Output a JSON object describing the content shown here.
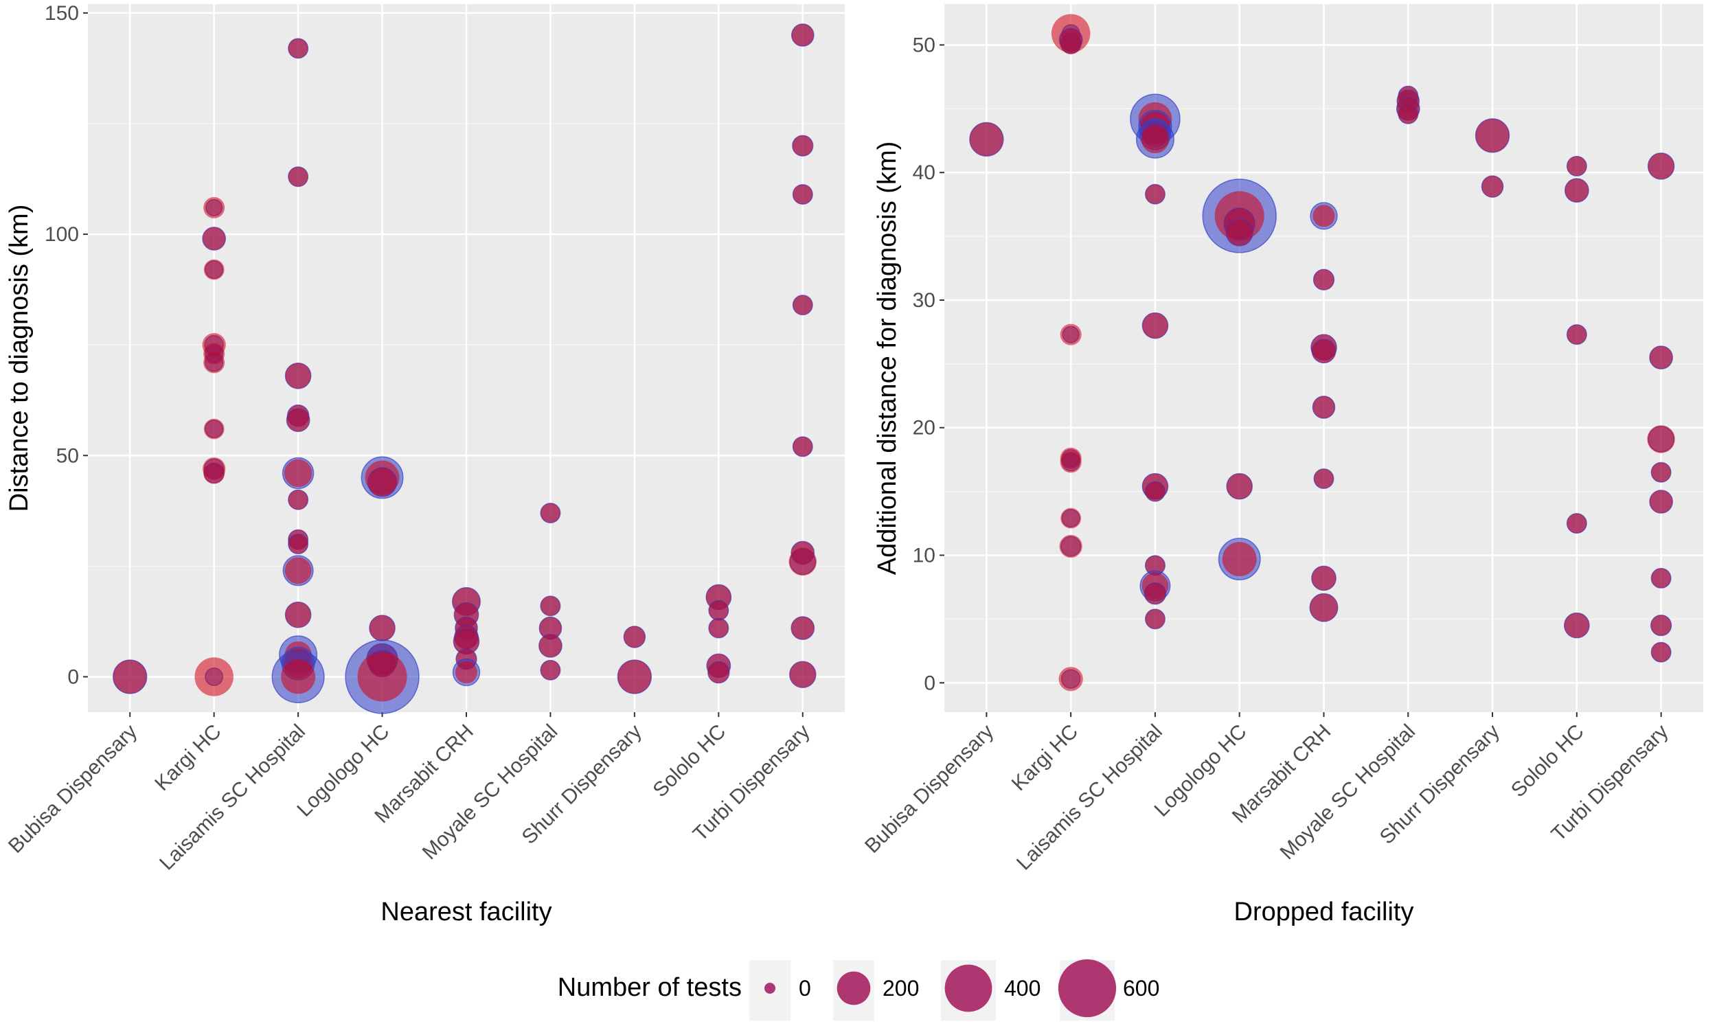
{
  "chart_data": [
    {
      "type": "scatter",
      "xlabel": "Nearest facility",
      "ylabel": "Distance to diagnosis (km)",
      "ylim": [
        -8,
        152
      ],
      "yticks": [
        0,
        50,
        100,
        150
      ],
      "grid": true,
      "categories": [
        "Bubisa Dispensary",
        "Kargi HC",
        "Laisamis SC Hospital",
        "Logologo HC",
        "Marsabit CRH",
        "Moyale SC Hospital",
        "Shurr Dispensary",
        "Sololo HC",
        "Turbi Dispensary"
      ],
      "points": [
        {
          "category": "Bubisa Dispensary",
          "y": 0,
          "tests": 150,
          "blue": 150
        },
        {
          "category": "Kargi HC",
          "y": 106,
          "tests": 40,
          "blue": 15
        },
        {
          "category": "Kargi HC",
          "y": 99,
          "tests": 50,
          "blue": 50
        },
        {
          "category": "Kargi HC",
          "y": 92,
          "tests": 35,
          "blue": 20
        },
        {
          "category": "Kargi HC",
          "y": 75,
          "tests": 55,
          "blue": 25
        },
        {
          "category": "Kargi HC",
          "y": 73,
          "tests": 40,
          "blue": 20
        },
        {
          "category": "Kargi HC",
          "y": 71,
          "tests": 40,
          "blue": 20
        },
        {
          "category": "Kargi HC",
          "y": 56,
          "tests": 35,
          "blue": 20
        },
        {
          "category": "Kargi HC",
          "y": 47,
          "tests": 50,
          "blue": 30
        },
        {
          "category": "Kargi HC",
          "y": 46,
          "tests": 40,
          "blue": 30
        },
        {
          "category": "Kargi HC",
          "y": 0,
          "tests": 220,
          "blue": 20
        },
        {
          "category": "Laisamis SC Hospital",
          "y": 142,
          "tests": 30,
          "blue": 30
        },
        {
          "category": "Laisamis SC Hospital",
          "y": 113,
          "tests": 30,
          "blue": 30
        },
        {
          "category": "Laisamis SC Hospital",
          "y": 68,
          "tests": 70,
          "blue": 70
        },
        {
          "category": "Laisamis SC Hospital",
          "y": 59,
          "tests": 40,
          "blue": 40
        },
        {
          "category": "Laisamis SC Hospital",
          "y": 58,
          "tests": 50,
          "blue": 50
        },
        {
          "category": "Laisamis SC Hospital",
          "y": 46,
          "tests": 90,
          "blue": 120
        },
        {
          "category": "Laisamis SC Hospital",
          "y": 40,
          "tests": 30,
          "blue": 30
        },
        {
          "category": "Laisamis SC Hospital",
          "y": 31,
          "tests": 30,
          "blue": 30
        },
        {
          "category": "Laisamis SC Hospital",
          "y": 30,
          "tests": 30,
          "blue": 30
        },
        {
          "category": "Laisamis SC Hospital",
          "y": 24,
          "tests": 80,
          "blue": 110
        },
        {
          "category": "Laisamis SC Hospital",
          "y": 14,
          "tests": 70,
          "blue": 70
        },
        {
          "category": "Laisamis SC Hospital",
          "y": 5,
          "tests": 80,
          "blue": 200
        },
        {
          "category": "Laisamis SC Hospital",
          "y": 3,
          "tests": 110,
          "blue": 140
        },
        {
          "category": "Laisamis SC Hospital",
          "y": 0,
          "tests": 160,
          "blue": 450
        },
        {
          "category": "Logologo HC",
          "y": 45,
          "tests": 160,
          "blue": 260
        },
        {
          "category": "Logologo HC",
          "y": 44,
          "tests": 100,
          "blue": 100
        },
        {
          "category": "Logologo HC",
          "y": 11,
          "tests": 70,
          "blue": 70
        },
        {
          "category": "Logologo HC",
          "y": 4,
          "tests": 120,
          "blue": 120
        },
        {
          "category": "Logologo HC",
          "y": 3,
          "tests": 80,
          "blue": 80
        },
        {
          "category": "Logologo HC",
          "y": 0,
          "tests": 400,
          "blue": 1000
        },
        {
          "category": "Marsabit CRH",
          "y": 17,
          "tests": 90,
          "blue": 90
        },
        {
          "category": "Marsabit CRH",
          "y": 14,
          "tests": 60,
          "blue": 60
        },
        {
          "category": "Marsabit CRH",
          "y": 11,
          "tests": 45,
          "blue": 45
        },
        {
          "category": "Marsabit CRH",
          "y": 9,
          "tests": 55,
          "blue": 55
        },
        {
          "category": "Marsabit CRH",
          "y": 8,
          "tests": 70,
          "blue": 70
        },
        {
          "category": "Marsabit CRH",
          "y": 4,
          "tests": 35,
          "blue": 35
        },
        {
          "category": "Marsabit CRH",
          "y": 1,
          "tests": 45,
          "blue": 80
        },
        {
          "category": "Moyale SC Hospital",
          "y": 37,
          "tests": 30,
          "blue": 30
        },
        {
          "category": "Moyale SC Hospital",
          "y": 16,
          "tests": 30,
          "blue": 30
        },
        {
          "category": "Moyale SC Hospital",
          "y": 11,
          "tests": 45,
          "blue": 45
        },
        {
          "category": "Moyale SC Hospital",
          "y": 7,
          "tests": 50,
          "blue": 50
        },
        {
          "category": "Moyale SC Hospital",
          "y": 1.5,
          "tests": 30,
          "blue": 30
        },
        {
          "category": "Shurr Dispensary",
          "y": 9,
          "tests": 40,
          "blue": 40
        },
        {
          "category": "Shurr Dispensary",
          "y": 0,
          "tests": 150,
          "blue": 150
        },
        {
          "category": "Sololo HC",
          "y": 18,
          "tests": 65,
          "blue": 65
        },
        {
          "category": "Sololo HC",
          "y": 15,
          "tests": 30,
          "blue": 30
        },
        {
          "category": "Sololo HC",
          "y": 11,
          "tests": 30,
          "blue": 30
        },
        {
          "category": "Sololo HC",
          "y": 2.5,
          "tests": 55,
          "blue": 55
        },
        {
          "category": "Sololo HC",
          "y": 1,
          "tests": 40,
          "blue": 40
        },
        {
          "category": "Turbi Dispensary",
          "y": 145,
          "tests": 45,
          "blue": 45
        },
        {
          "category": "Turbi Dispensary",
          "y": 120,
          "tests": 35,
          "blue": 35
        },
        {
          "category": "Turbi Dispensary",
          "y": 109,
          "tests": 30,
          "blue": 30
        },
        {
          "category": "Turbi Dispensary",
          "y": 84,
          "tests": 30,
          "blue": 30
        },
        {
          "category": "Turbi Dispensary",
          "y": 52,
          "tests": 30,
          "blue": 30
        },
        {
          "category": "Turbi Dispensary",
          "y": 28,
          "tests": 50,
          "blue": 50
        },
        {
          "category": "Turbi Dispensary",
          "y": 26,
          "tests": 90,
          "blue": 70
        },
        {
          "category": "Turbi Dispensary",
          "y": 11,
          "tests": 50,
          "blue": 50
        },
        {
          "category": "Turbi Dispensary",
          "y": 0.5,
          "tests": 75,
          "blue": 75
        }
      ]
    },
    {
      "type": "scatter",
      "xlabel": "Dropped facility",
      "ylabel": "Additional distance for diagnosis (km)",
      "ylim": [
        -2.3,
        53.2
      ],
      "yticks": [
        0,
        10,
        20,
        30,
        40,
        50
      ],
      "grid": true,
      "categories": [
        "Bubisa Dispensary",
        "Kargi HC",
        "Laisamis SC Hospital",
        "Logologo HC",
        "Marsabit CRH",
        "Moyale SC Hospital",
        "Shurr Dispensary",
        "Sololo HC",
        "Turbi Dispensary"
      ],
      "points": [
        {
          "category": "Bubisa Dispensary",
          "y": 42.6,
          "tests": 150,
          "blue": 150
        },
        {
          "category": "Kargi HC",
          "y": 50.9,
          "tests": 220,
          "blue": 20
        },
        {
          "category": "Kargi HC",
          "y": 50.4,
          "tests": 50,
          "blue": 50
        },
        {
          "category": "Kargi HC",
          "y": 50.1,
          "tests": 40,
          "blue": 30
        },
        {
          "category": "Kargi HC",
          "y": 27.3,
          "tests": 40,
          "blue": 15
        },
        {
          "category": "Kargi HC",
          "y": 17.6,
          "tests": 40,
          "blue": 20
        },
        {
          "category": "Kargi HC",
          "y": 17.3,
          "tests": 40,
          "blue": 20
        },
        {
          "category": "Kargi HC",
          "y": 12.9,
          "tests": 35,
          "blue": 20
        },
        {
          "category": "Kargi HC",
          "y": 10.7,
          "tests": 50,
          "blue": 30
        },
        {
          "category": "Kargi HC",
          "y": 0.3,
          "tests": 60,
          "blue": 25
        },
        {
          "category": "Laisamis SC Hospital",
          "y": 44.2,
          "tests": 150,
          "blue": 400
        },
        {
          "category": "Laisamis SC Hospital",
          "y": 43.6,
          "tests": 110,
          "blue": 140
        },
        {
          "category": "Laisamis SC Hospital",
          "y": 43.0,
          "tests": 80,
          "blue": 120
        },
        {
          "category": "Laisamis SC Hospital",
          "y": 42.6,
          "tests": 90,
          "blue": 200
        },
        {
          "category": "Laisamis SC Hospital",
          "y": 38.3,
          "tests": 30,
          "blue": 30
        },
        {
          "category": "Laisamis SC Hospital",
          "y": 28.0,
          "tests": 70,
          "blue": 70
        },
        {
          "category": "Laisamis SC Hospital",
          "y": 15.4,
          "tests": 70,
          "blue": 70
        },
        {
          "category": "Laisamis SC Hospital",
          "y": 15.0,
          "tests": 30,
          "blue": 30
        },
        {
          "category": "Laisamis SC Hospital",
          "y": 9.2,
          "tests": 30,
          "blue": 30
        },
        {
          "category": "Laisamis SC Hospital",
          "y": 7.6,
          "tests": 80,
          "blue": 110
        },
        {
          "category": "Laisamis SC Hospital",
          "y": 7.0,
          "tests": 40,
          "blue": 40
        },
        {
          "category": "Laisamis SC Hospital",
          "y": 5.0,
          "tests": 30,
          "blue": 30
        },
        {
          "category": "Logologo HC",
          "y": 36.6,
          "tests": 400,
          "blue": 1000
        },
        {
          "category": "Logologo HC",
          "y": 36.0,
          "tests": 120,
          "blue": 120
        },
        {
          "category": "Logologo HC",
          "y": 35.3,
          "tests": 80,
          "blue": 80
        },
        {
          "category": "Logologo HC",
          "y": 15.4,
          "tests": 70,
          "blue": 70
        },
        {
          "category": "Logologo HC",
          "y": 9.7,
          "tests": 160,
          "blue": 260
        },
        {
          "category": "Marsabit CRH",
          "y": 36.6,
          "tests": 45,
          "blue": 80
        },
        {
          "category": "Marsabit CRH",
          "y": 31.6,
          "tests": 35,
          "blue": 35
        },
        {
          "category": "Marsabit CRH",
          "y": 26.3,
          "tests": 70,
          "blue": 70
        },
        {
          "category": "Marsabit CRH",
          "y": 26.0,
          "tests": 55,
          "blue": 55
        },
        {
          "category": "Marsabit CRH",
          "y": 21.6,
          "tests": 45,
          "blue": 45
        },
        {
          "category": "Marsabit CRH",
          "y": 16.0,
          "tests": 30,
          "blue": 30
        },
        {
          "category": "Marsabit CRH",
          "y": 8.2,
          "tests": 60,
          "blue": 60
        },
        {
          "category": "Marsabit CRH",
          "y": 5.9,
          "tests": 90,
          "blue": 90
        },
        {
          "category": "Moyale SC Hospital",
          "y": 46.0,
          "tests": 30,
          "blue": 30
        },
        {
          "category": "Moyale SC Hospital",
          "y": 45.6,
          "tests": 45,
          "blue": 45
        },
        {
          "category": "Moyale SC Hospital",
          "y": 45.0,
          "tests": 50,
          "blue": 50
        },
        {
          "category": "Moyale SC Hospital",
          "y": 44.6,
          "tests": 30,
          "blue": 30
        },
        {
          "category": "Shurr Dispensary",
          "y": 42.9,
          "tests": 150,
          "blue": 150
        },
        {
          "category": "Shurr Dispensary",
          "y": 38.9,
          "tests": 40,
          "blue": 40
        },
        {
          "category": "Sololo HC",
          "y": 40.5,
          "tests": 30,
          "blue": 30
        },
        {
          "category": "Sololo HC",
          "y": 38.6,
          "tests": 55,
          "blue": 55
        },
        {
          "category": "Sololo HC",
          "y": 27.3,
          "tests": 30,
          "blue": 30
        },
        {
          "category": "Sololo HC",
          "y": 12.5,
          "tests": 30,
          "blue": 30
        },
        {
          "category": "Sololo HC",
          "y": 4.5,
          "tests": 65,
          "blue": 65
        },
        {
          "category": "Turbi Dispensary",
          "y": 40.5,
          "tests": 75,
          "blue": 75
        },
        {
          "category": "Turbi Dispensary",
          "y": 25.5,
          "tests": 50,
          "blue": 50
        },
        {
          "category": "Turbi Dispensary",
          "y": 19.1,
          "tests": 90,
          "blue": 70
        },
        {
          "category": "Turbi Dispensary",
          "y": 16.5,
          "tests": 30,
          "blue": 30
        },
        {
          "category": "Turbi Dispensary",
          "y": 14.2,
          "tests": 50,
          "blue": 50
        },
        {
          "category": "Turbi Dispensary",
          "y": 8.2,
          "tests": 30,
          "blue": 30
        },
        {
          "category": "Turbi Dispensary",
          "y": 4.5,
          "tests": 35,
          "blue": 35
        },
        {
          "category": "Turbi Dispensary",
          "y": 2.4,
          "tests": 30,
          "blue": 30
        }
      ]
    }
  ],
  "legend": {
    "title": "Number of tests",
    "entries": [
      {
        "label": "0",
        "value": 0
      },
      {
        "label": "200",
        "value": 200
      },
      {
        "label": "400",
        "value": 400
      },
      {
        "label": "600",
        "value": 600
      }
    ]
  },
  "colors": {
    "panel_bg": "#ebebeb",
    "grid_major": "#ffffff",
    "grid_minor": "#f5f5f5",
    "red_fill": "#d40014",
    "blue_fill": "#3340c8",
    "purple_fill": "#a3165a",
    "axis_text": "#4d4d4d",
    "title_text": "#000000"
  }
}
